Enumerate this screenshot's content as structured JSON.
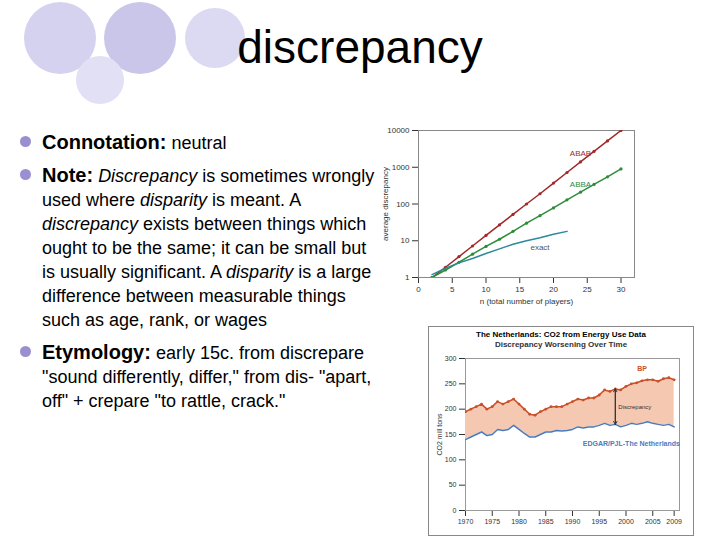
{
  "title": "discrepancy",
  "bullets": [
    [
      {
        "text": "Connotation:",
        "style": "bold"
      },
      {
        "text": " neutral"
      }
    ],
    [
      {
        "text": "Note:",
        "style": "bold"
      },
      {
        "text": " "
      },
      {
        "text": "Discrepancy",
        "style": "italic"
      },
      {
        "text": " is sometimes wrongly used where "
      },
      {
        "text": "disparity",
        "style": "italic"
      },
      {
        "text": " is meant. A "
      },
      {
        "text": "discrepancy",
        "style": "italic"
      },
      {
        "text": " exists between things which ought to be the same; it can be small but is usually significant. A "
      },
      {
        "text": "disparity",
        "style": "italic"
      },
      {
        "text": " is a large difference between measurable things such as age, rank, or wages"
      }
    ],
    [
      {
        "text": "Etymology:",
        "style": "bold"
      },
      {
        "text": " early 15c. from discrepare \"sound differently, differ,\" from dis- \"apart, off\" + crepare \"to rattle, crack.\""
      }
    ]
  ],
  "chart_data": [
    {
      "type": "line",
      "log": "y",
      "xlabel": "n (total number of players)",
      "ylabel": "average discrepancy",
      "x": [
        2,
        4,
        6,
        8,
        10,
        12,
        14,
        16,
        18,
        20,
        22,
        24,
        26,
        28,
        30
      ],
      "series": [
        {
          "name": "ABAB",
          "color": "#a3282a",
          "marker": "circle",
          "values": [
            1,
            1.9,
            3.7,
            7.2,
            14,
            27,
            52,
            100,
            190,
            370,
            720,
            1400,
            2700,
            5200,
            10000
          ]
        },
        {
          "name": "ABBA",
          "color": "#2e8b3a",
          "marker": "circle",
          "values": [
            1,
            1.6,
            2.6,
            4.3,
            7,
            11,
            18,
            30,
            48,
            78,
            130,
            210,
            340,
            550,
            900
          ]
        },
        {
          "name": "exact",
          "color": "#2a8a9a",
          "values": [
            1.2,
            1.8,
            2.5,
            3.3,
            4.5,
            6,
            8,
            10,
            12,
            15,
            18,
            null,
            null,
            null,
            null
          ]
        }
      ],
      "xlim": [
        0,
        32
      ],
      "ylim": [
        1,
        10000
      ],
      "xticks": [
        0,
        5,
        10,
        15,
        20,
        25,
        30
      ],
      "yticks": [
        1,
        10,
        100,
        1000,
        10000
      ]
    },
    {
      "type": "area",
      "title": "The Netherlands: CO2 from Energy Use Data",
      "subtitle": "Discrepancy Worsening Over Time",
      "ylabel": "CO2 mill tons",
      "annotations": [
        "Discrepancy"
      ],
      "x": [
        1970,
        1971,
        1972,
        1973,
        1974,
        1975,
        1976,
        1977,
        1978,
        1979,
        1980,
        1981,
        1982,
        1983,
        1984,
        1985,
        1986,
        1987,
        1988,
        1989,
        1990,
        1991,
        1992,
        1993,
        1994,
        1995,
        1996,
        1997,
        1998,
        1999,
        2000,
        2001,
        2002,
        2003,
        2004,
        2005,
        2006,
        2007,
        2008,
        2009
      ],
      "series": [
        {
          "name": "BP",
          "color": "#c8502a",
          "marker": "circle",
          "values": [
            195,
            200,
            205,
            210,
            200,
            205,
            215,
            210,
            215,
            220,
            210,
            200,
            190,
            188,
            195,
            200,
            205,
            205,
            205,
            210,
            215,
            220,
            218,
            222,
            222,
            228,
            238,
            235,
            240,
            238,
            245,
            250,
            252,
            256,
            258,
            258,
            255,
            260,
            262,
            258
          ]
        },
        {
          "name": "EDGAR/PJL-The Netherlands",
          "color": "#4a7bbf",
          "values": [
            140,
            145,
            150,
            155,
            148,
            150,
            160,
            158,
            160,
            168,
            160,
            152,
            145,
            145,
            150,
            155,
            155,
            158,
            157,
            158,
            160,
            165,
            163,
            165,
            165,
            168,
            172,
            168,
            170,
            165,
            168,
            172,
            170,
            172,
            175,
            172,
            170,
            168,
            170,
            165
          ]
        }
      ],
      "xlim": [
        1970,
        2010
      ],
      "ylim": [
        0,
        300
      ],
      "xticks": [
        1970,
        1975,
        1980,
        1985,
        1990,
        1995,
        2000,
        2005,
        2009
      ],
      "yticks": [
        0,
        50,
        100,
        150,
        200,
        250,
        300
      ]
    }
  ]
}
